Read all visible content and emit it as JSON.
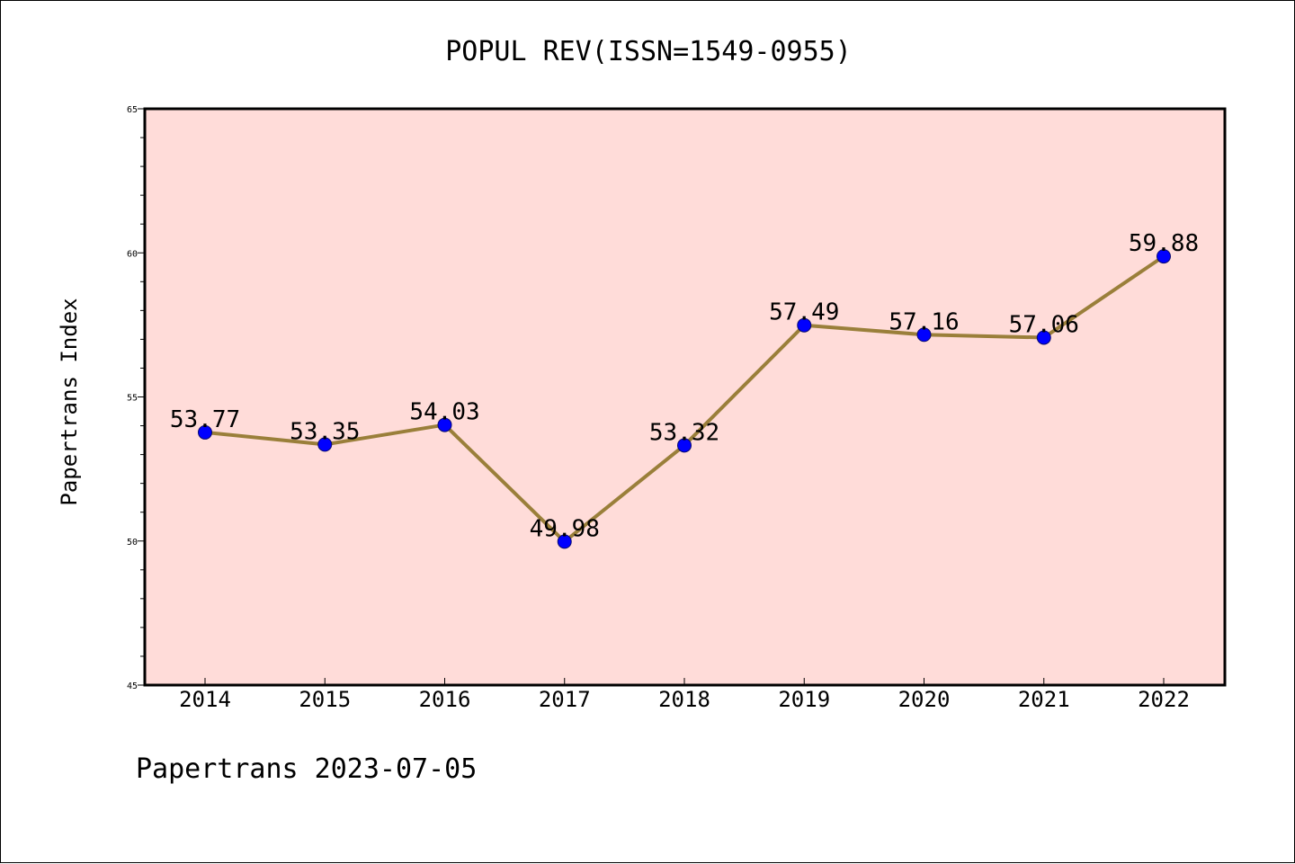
{
  "chart_data": {
    "type": "line",
    "title": "POPUL REV(ISSN=1549-0955)",
    "xlabel": "",
    "ylabel": "Papertrans Index",
    "footer": "Papertrans 2023-07-05",
    "categories": [
      "2014",
      "2015",
      "2016",
      "2017",
      "2018",
      "2019",
      "2020",
      "2021",
      "2022"
    ],
    "values": [
      53.77,
      53.35,
      54.03,
      49.98,
      53.32,
      57.49,
      57.16,
      57.06,
      59.88
    ],
    "data_labels": [
      "53.77",
      "53.35",
      "54.03",
      "49.98",
      "53.32",
      "57.49",
      "57.16",
      "57.06",
      "59.88"
    ],
    "ylim": [
      45,
      65
    ],
    "yticks": [
      "45",
      "50",
      "55",
      "60",
      "65"
    ],
    "grid": false,
    "colors": {
      "plot_background": "#ffdcd9",
      "line": "#9a7f3a",
      "marker": "#0000ff",
      "marker_edge": "#0a0a6e"
    }
  }
}
